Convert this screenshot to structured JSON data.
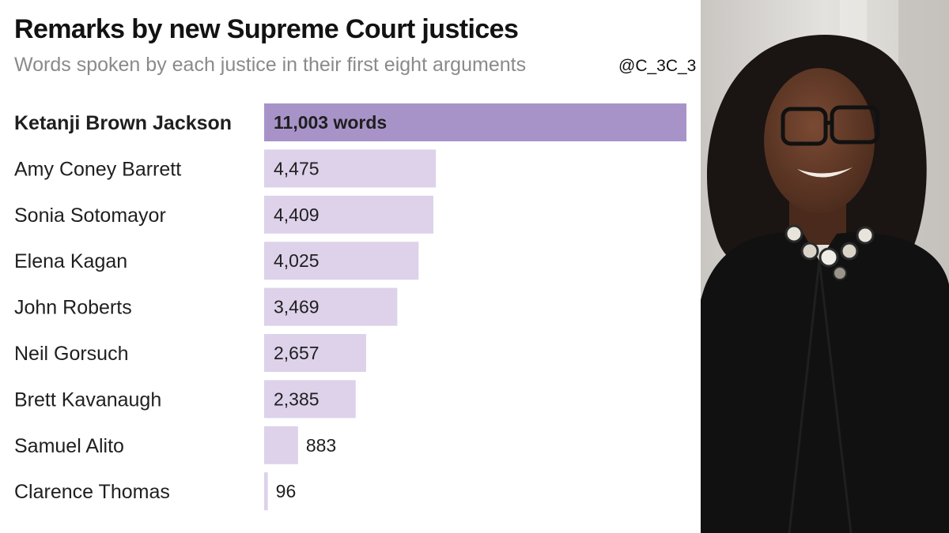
{
  "chart_data": {
    "type": "bar",
    "orientation": "horizontal",
    "title": "Remarks by new Supreme Court justices",
    "subtitle": "Words spoken by each justice in their first eight arguments",
    "categories": [
      "Ketanji Brown Jackson",
      "Amy Coney Barrett",
      "Sonia Sotomayor",
      "Elena Kagan",
      "John Roberts",
      "Neil Gorsuch",
      "Brett Kavanaugh",
      "Samuel Alito",
      "Clarence Thomas"
    ],
    "values": [
      11003,
      4475,
      4409,
      4025,
      3469,
      2657,
      2385,
      883,
      96
    ],
    "value_labels": [
      "11,003 words",
      "4,475",
      "4,409",
      "4,025",
      "3,469",
      "2,657",
      "2,385",
      "883",
      "96"
    ],
    "highlight_index": 0,
    "colors": {
      "highlight": "#a893c9",
      "bar": "#ddd2ea",
      "label": "#1f1f1f"
    }
  },
  "watermark": "@C_3C_3"
}
